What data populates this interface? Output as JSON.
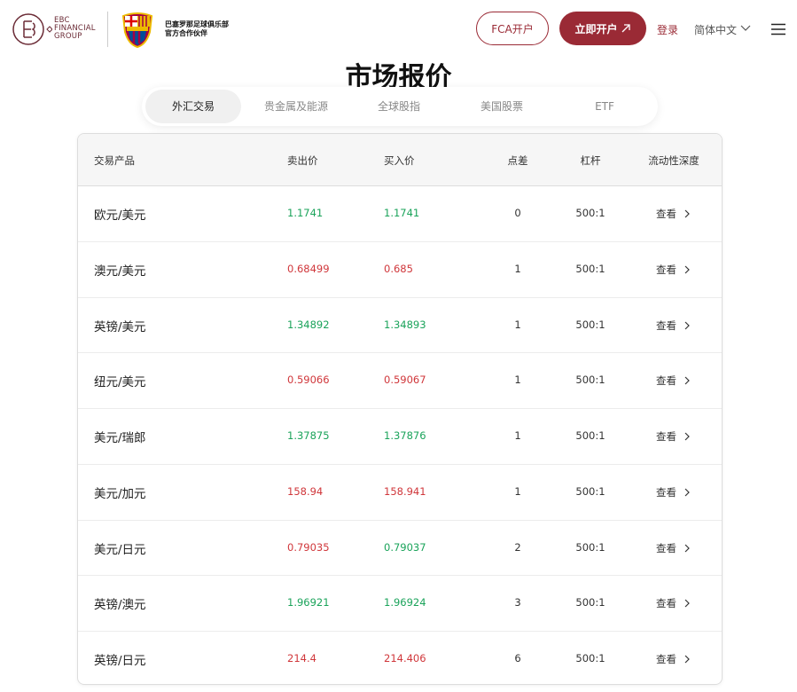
{
  "header": {
    "logo_text": [
      "EBC",
      "FINANCIAL",
      "GROUP"
    ],
    "partner_lines": [
      "巴塞罗那足球俱乐部",
      "官方合作伙伴"
    ],
    "fca_button": "FCA开户",
    "open_button": "立即开户",
    "login": "登录",
    "language": "简体中文"
  },
  "section_title": "市场报价",
  "tabs": [
    "外汇交易",
    "贵金属及能源",
    "全球股指",
    "美国股票",
    "ETF"
  ],
  "active_tab": 0,
  "table": {
    "columns": [
      "交易产品",
      "卖出价",
      "买入价",
      "点差",
      "杠杆",
      "流动性深度"
    ],
    "rows": [
      {
        "product": "欧元/美元",
        "sell": "1.1741",
        "sell_color": "#1aa35a",
        "buy": "1.1741",
        "buy_color": "#1aa35a",
        "spread": 0,
        "leverage": "500:1",
        "depth": "查看"
      },
      {
        "product": "澳元/美元",
        "sell": "0.68499",
        "sell_color": "#d0373b",
        "buy": "0.685",
        "buy_color": "#d0373b",
        "spread": 1,
        "leverage": "500:1",
        "depth": "查看"
      },
      {
        "product": "英镑/美元",
        "sell": "1.34892",
        "sell_color": "#1aa35a",
        "buy": "1.34893",
        "buy_color": "#1aa35a",
        "spread": 1,
        "leverage": "500:1",
        "depth": "查看"
      },
      {
        "product": "纽元/美元",
        "sell": "0.59066",
        "sell_color": "#d0373b",
        "buy": "0.59067",
        "buy_color": "#d0373b",
        "spread": 1,
        "leverage": "500:1",
        "depth": "查看"
      },
      {
        "product": "美元/瑞郎",
        "sell": "1.37875",
        "sell_color": "#1aa35a",
        "buy": "1.37876",
        "buy_color": "#1aa35a",
        "spread": 1,
        "leverage": "500:1",
        "depth": "查看"
      },
      {
        "product": "美元/加元",
        "sell": "158.94",
        "sell_color": "#d0373b",
        "buy": "158.941",
        "buy_color": "#d0373b",
        "spread": 1,
        "leverage": "500:1",
        "depth": "查看"
      },
      {
        "product": "美元/日元",
        "sell": "0.79035",
        "sell_color": "#d0373b",
        "buy": "0.79037",
        "buy_color": "#1aa35a",
        "spread": 2,
        "leverage": "500:1",
        "depth": "查看"
      },
      {
        "product": "英镑/澳元",
        "sell": "1.96921",
        "sell_color": "#1aa35a",
        "buy": "1.96924",
        "buy_color": "#1aa35a",
        "spread": 3,
        "leverage": "500:1",
        "depth": "查看"
      },
      {
        "product": "英镑/日元",
        "sell": "214.4",
        "sell_color": "#d0373b",
        "buy": "214.406",
        "buy_color": "#d0373b",
        "spread": 6,
        "leverage": "500:1",
        "depth": "查看"
      }
    ]
  }
}
